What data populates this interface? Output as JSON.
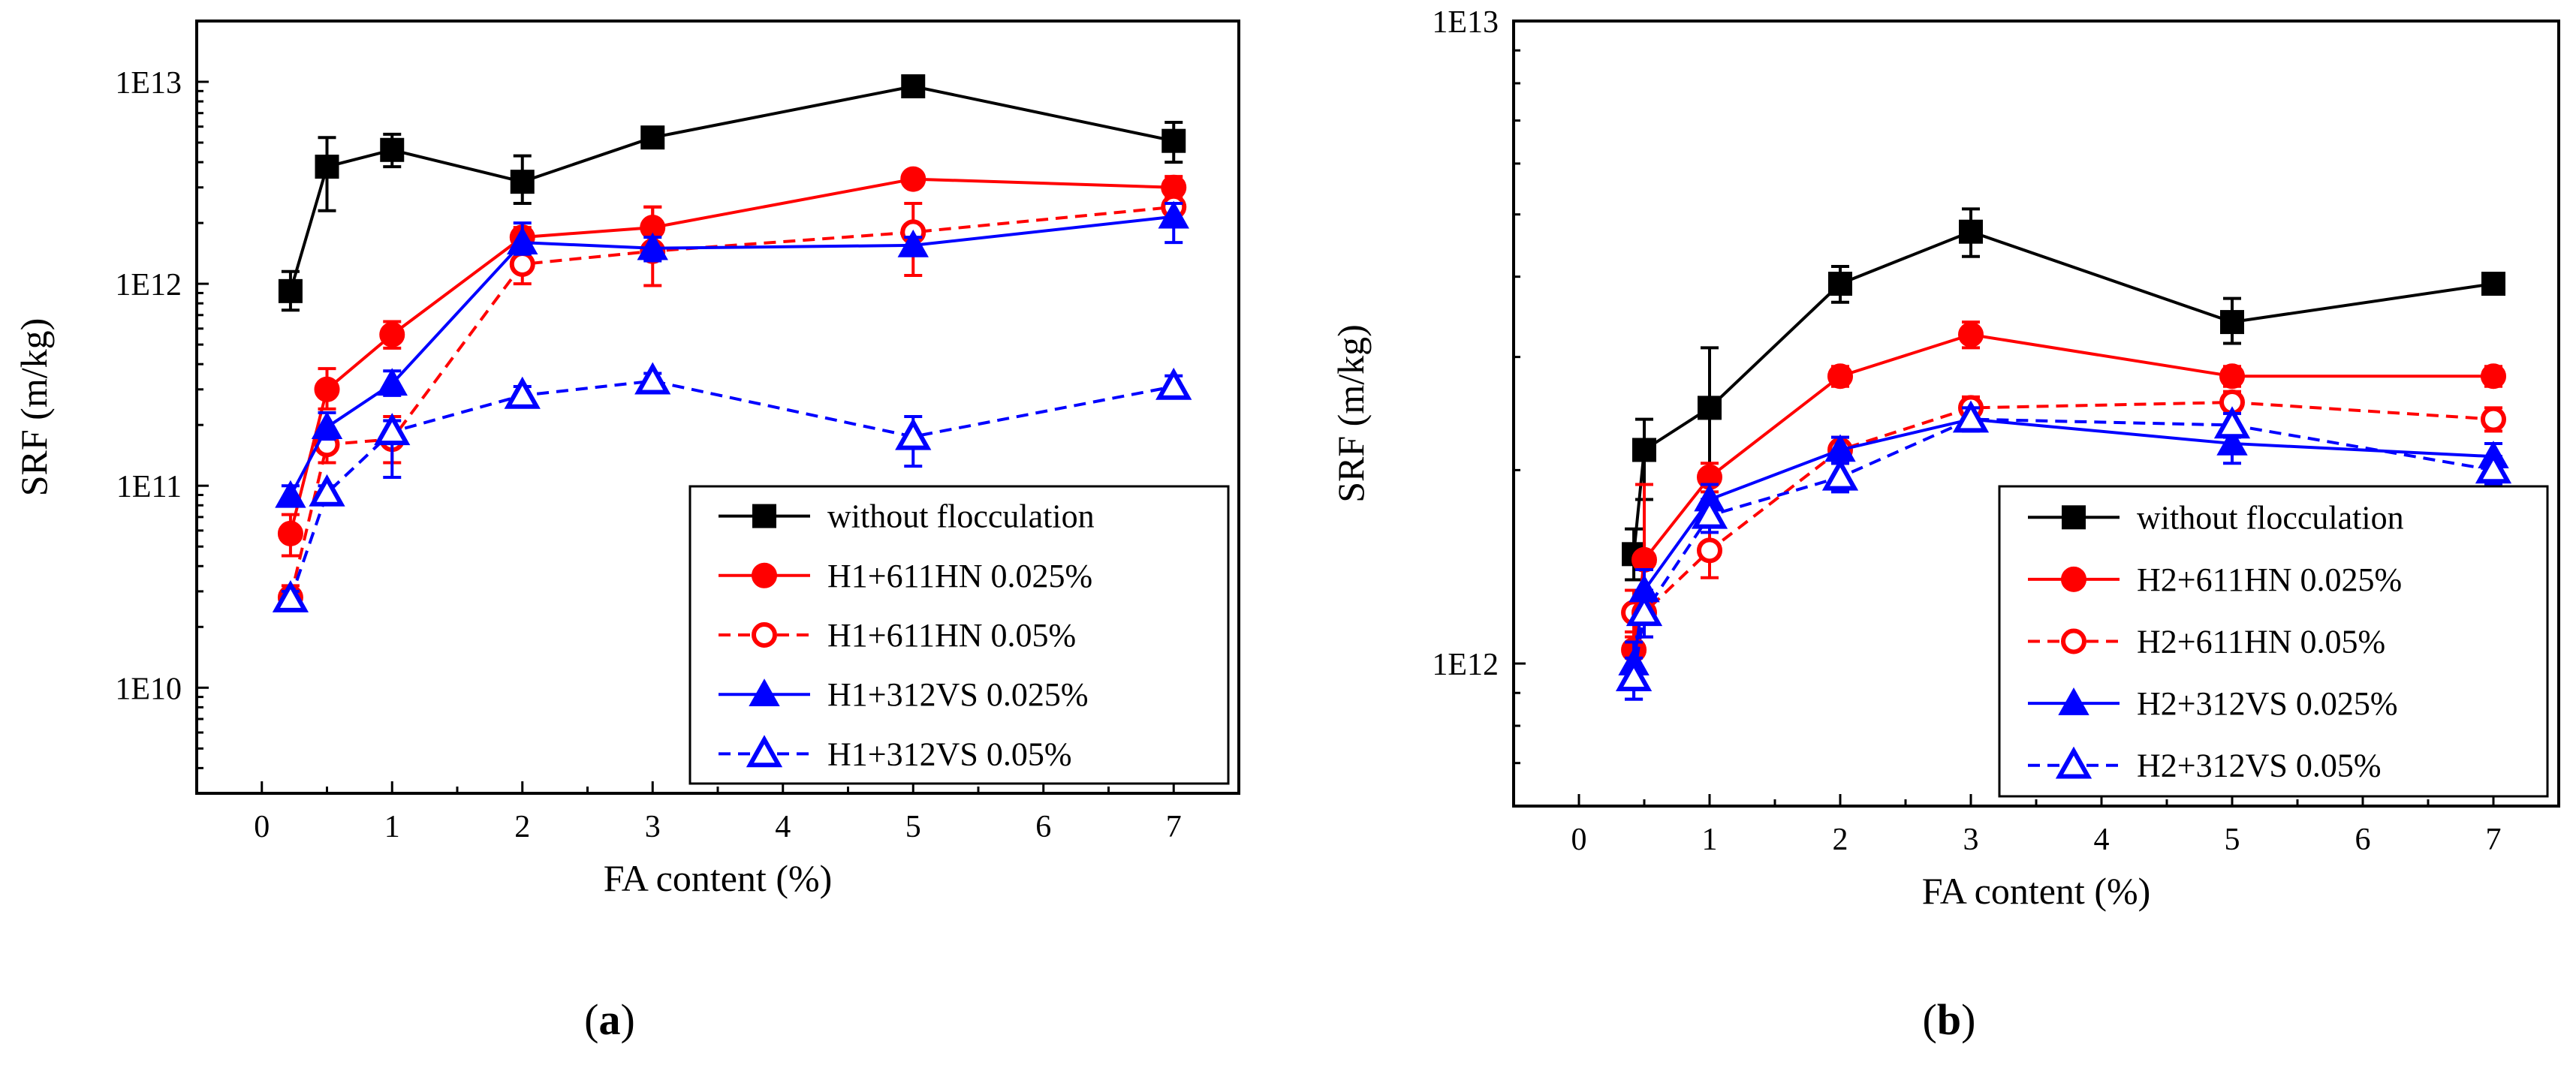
{
  "panels": {
    "a": {
      "label": "a"
    },
    "b": {
      "label": "b"
    }
  },
  "chart_data": [
    {
      "id": "a",
      "type": "line",
      "scale": "log",
      "xlabel": "FA content (%)",
      "ylabel": "SRF (m/kg)",
      "xlim": [
        -0.5,
        7.5
      ],
      "ylim": [
        3000000000.0,
        20000000000000.0
      ],
      "xticks": [
        0,
        1,
        2,
        3,
        4,
        5,
        6,
        7
      ],
      "xtick_labels": [
        "0",
        "1",
        "2",
        "3",
        "4",
        "5",
        "6",
        "7"
      ],
      "yticks": [
        10000000000.0,
        100000000000.0,
        1000000000000.0,
        10000000000000.0
      ],
      "ytick_labels": [
        "1E10",
        "1E11",
        "1E12",
        "1E13"
      ],
      "legend_position": "bottom-right",
      "series": [
        {
          "name": "without flocculation",
          "color": "#000000",
          "marker": "square",
          "filled": true,
          "dashed": false,
          "x": [
            0.22,
            0.5,
            1,
            2,
            3,
            5,
            7
          ],
          "y": [
            920000000000.0,
            3800000000000.0,
            4600000000000.0,
            3200000000000.0,
            5300000000000.0,
            9500000000000.0,
            5100000000000.0
          ],
          "err_hi": [
            1150000000000.0,
            5300000000000.0,
            5500000000000.0,
            4300000000000.0,
            5800000000000.0,
            10000000000000.0,
            6300000000000.0
          ],
          "err_lo": [
            740000000000.0,
            2300000000000.0,
            3800000000000.0,
            2500000000000.0,
            5000000000000.0,
            9200000000000.0,
            4000000000000.0
          ]
        },
        {
          "name": "H1+611HN 0.025%",
          "color": "#ff0000",
          "marker": "circle",
          "filled": true,
          "dashed": false,
          "x": [
            0.22,
            0.5,
            1,
            2,
            3,
            5,
            7
          ],
          "y": [
            58000000000.0,
            300000000000.0,
            560000000000.0,
            1700000000000.0,
            1900000000000.0,
            3300000000000.0,
            3000000000000.0
          ],
          "err_hi": [
            72000000000.0,
            380000000000.0,
            650000000000.0,
            1900000000000.0,
            2400000000000.0,
            3500000000000.0,
            3400000000000.0
          ],
          "err_lo": [
            45000000000.0,
            240000000000.0,
            480000000000.0,
            1500000000000.0,
            1500000000000.0,
            3100000000000.0,
            2600000000000.0
          ]
        },
        {
          "name": "H1+611HN 0.05%",
          "color": "#ff0000",
          "marker": "circle",
          "filled": false,
          "dashed": true,
          "x": [
            0.22,
            0.5,
            1,
            2,
            3,
            5,
            7
          ],
          "y": [
            28000000000.0,
            160000000000.0,
            170000000000.0,
            1250000000000.0,
            1450000000000.0,
            1800000000000.0,
            2400000000000.0
          ],
          "err_hi": [
            32000000000.0,
            190000000000.0,
            220000000000.0,
            1500000000000.0,
            2400000000000.0,
            2500000000000.0,
            2700000000000.0
          ],
          "err_lo": [
            25000000000.0,
            130000000000.0,
            130000000000.0,
            1000000000000.0,
            980000000000.0,
            1100000000000.0,
            2100000000000.0
          ]
        },
        {
          "name": "H1+312VS 0.025%",
          "color": "#0000ff",
          "marker": "triangle",
          "filled": true,
          "dashed": false,
          "x": [
            0.22,
            0.5,
            1,
            2,
            3,
            5,
            7
          ],
          "y": [
            89000000000.0,
            195000000000.0,
            320000000000.0,
            1600000000000.0,
            1500000000000.0,
            1550000000000.0,
            2150000000000.0
          ],
          "err_hi": [
            100000000000.0,
            230000000000.0,
            370000000000.0,
            2000000000000.0,
            1700000000000.0,
            1700000000000.0,
            2500000000000.0
          ],
          "err_lo": [
            80000000000.0,
            170000000000.0,
            280000000000.0,
            1400000000000.0,
            1300000000000.0,
            1400000000000.0,
            1600000000000.0
          ]
        },
        {
          "name": "H1+312VS 0.05%",
          "color": "#0000ff",
          "marker": "triangle",
          "filled": false,
          "dashed": true,
          "x": [
            0.22,
            0.5,
            1,
            2,
            3,
            5,
            7
          ],
          "y": [
            27500000000.0,
            92000000000.0,
            185000000000.0,
            280000000000.0,
            330000000000.0,
            175000000000.0,
            310000000000.0
          ],
          "err_hi": [
            30000000000.0,
            100000000000.0,
            210000000000.0,
            310000000000.0,
            360000000000.0,
            220000000000.0,
            350000000000.0
          ],
          "err_lo": [
            25000000000.0,
            85000000000.0,
            110000000000.0,
            250000000000.0,
            300000000000.0,
            125000000000.0,
            280000000000.0
          ]
        }
      ]
    },
    {
      "id": "b",
      "type": "line",
      "scale": "log",
      "xlabel": "FA content (%)",
      "ylabel": "SRF (m/kg)",
      "xlim": [
        -0.5,
        7.5
      ],
      "ylim": [
        600000000000.0,
        10000000000000.0
      ],
      "xticks": [
        0,
        1,
        2,
        3,
        4,
        5,
        6,
        7
      ],
      "xtick_labels": [
        "0",
        "1",
        "2",
        "3",
        "4",
        "5",
        "6",
        "7"
      ],
      "yticks": [
        1000000000000.0,
        10000000000000.0
      ],
      "ytick_labels": [
        "1E12",
        "1E13"
      ],
      "legend_position": "bottom-right",
      "series": [
        {
          "name": "without flocculation",
          "color": "#000000",
          "marker": "square",
          "filled": true,
          "dashed": false,
          "x": [
            0.42,
            0.5,
            1,
            2,
            3,
            5,
            7
          ],
          "y": [
            1480000000000.0,
            2150000000000.0,
            2500000000000.0,
            3900000000000.0,
            4700000000000.0,
            3400000000000.0,
            3900000000000.0
          ],
          "err_hi": [
            1620000000000.0,
            2400000000000.0,
            3100000000000.0,
            4150000000000.0,
            5100000000000.0,
            3700000000000.0,
            4000000000000.0
          ],
          "err_lo": [
            1350000000000.0,
            1800000000000.0,
            1800000000000.0,
            3650000000000.0,
            4300000000000.0,
            3150000000000.0,
            3800000000000.0
          ]
        },
        {
          "name": "H2+611HN 0.025%",
          "color": "#ff0000",
          "marker": "circle",
          "filled": true,
          "dashed": false,
          "x": [
            0.42,
            0.5,
            1,
            2,
            3,
            5,
            7
          ],
          "y": [
            1050000000000.0,
            1450000000000.0,
            1950000000000.0,
            2800000000000.0,
            3250000000000.0,
            2800000000000.0,
            2800000000000.0
          ],
          "err_hi": [
            1120000000000.0,
            1900000000000.0,
            2050000000000.0,
            2900000000000.0,
            3400000000000.0,
            2900000000000.0,
            2900000000000.0
          ],
          "err_lo": [
            980000000000.0,
            1250000000000.0,
            1850000000000.0,
            2700000000000.0,
            3100000000000.0,
            2700000000000.0,
            2700000000000.0
          ]
        },
        {
          "name": "H2+611HN 0.05%",
          "color": "#ff0000",
          "marker": "circle",
          "filled": false,
          "dashed": true,
          "x": [
            0.42,
            0.5,
            1,
            2,
            3,
            5,
            7
          ],
          "y": [
            1200000000000.0,
            1200000000000.0,
            1500000000000.0,
            2150000000000.0,
            2500000000000.0,
            2550000000000.0,
            2400000000000.0
          ],
          "err_hi": [
            1300000000000.0,
            1300000000000.0,
            1650000000000.0,
            2250000000000.0,
            2600000000000.0,
            2650000000000.0,
            2500000000000.0
          ],
          "err_lo": [
            1100000000000.0,
            1100000000000.0,
            1360000000000.0,
            2050000000000.0,
            2400000000000.0,
            2450000000000.0,
            2300000000000.0
          ]
        },
        {
          "name": "H2+312VS 0.025%",
          "color": "#0000ff",
          "marker": "triangle",
          "filled": true,
          "dashed": false,
          "x": [
            0.42,
            0.5,
            1,
            2,
            3,
            5,
            7
          ],
          "y": [
            1000000000000.0,
            1300000000000.0,
            1800000000000.0,
            2150000000000.0,
            2400000000000.0,
            2200000000000.0,
            2100000000000.0
          ],
          "err_hi": [
            1080000000000.0,
            1400000000000.0,
            1900000000000.0,
            2250000000000.0,
            2500000000000.0,
            2300000000000.0,
            2200000000000.0
          ],
          "err_lo": [
            880000000000.0,
            1200000000000.0,
            1700000000000.0,
            2050000000000.0,
            2300000000000.0,
            2050000000000.0,
            1900000000000.0
          ]
        },
        {
          "name": "H2+312VS 0.05%",
          "color": "#0000ff",
          "marker": "triangle",
          "filled": false,
          "dashed": true,
          "x": [
            0.42,
            0.5,
            1,
            2,
            3,
            5,
            7
          ],
          "y": [
            950000000000.0,
            1200000000000.0,
            1700000000000.0,
            1950000000000.0,
            2400000000000.0,
            2350000000000.0,
            2000000000000.0
          ],
          "err_hi": [
            1020000000000.0,
            1300000000000.0,
            1800000000000.0,
            2050000000000.0,
            2500000000000.0,
            2450000000000.0,
            2100000000000.0
          ],
          "err_lo": [
            880000000000.0,
            1100000000000.0,
            1600000000000.0,
            1850000000000.0,
            2300000000000.0,
            2250000000000.0,
            1900000000000.0
          ]
        }
      ]
    }
  ]
}
